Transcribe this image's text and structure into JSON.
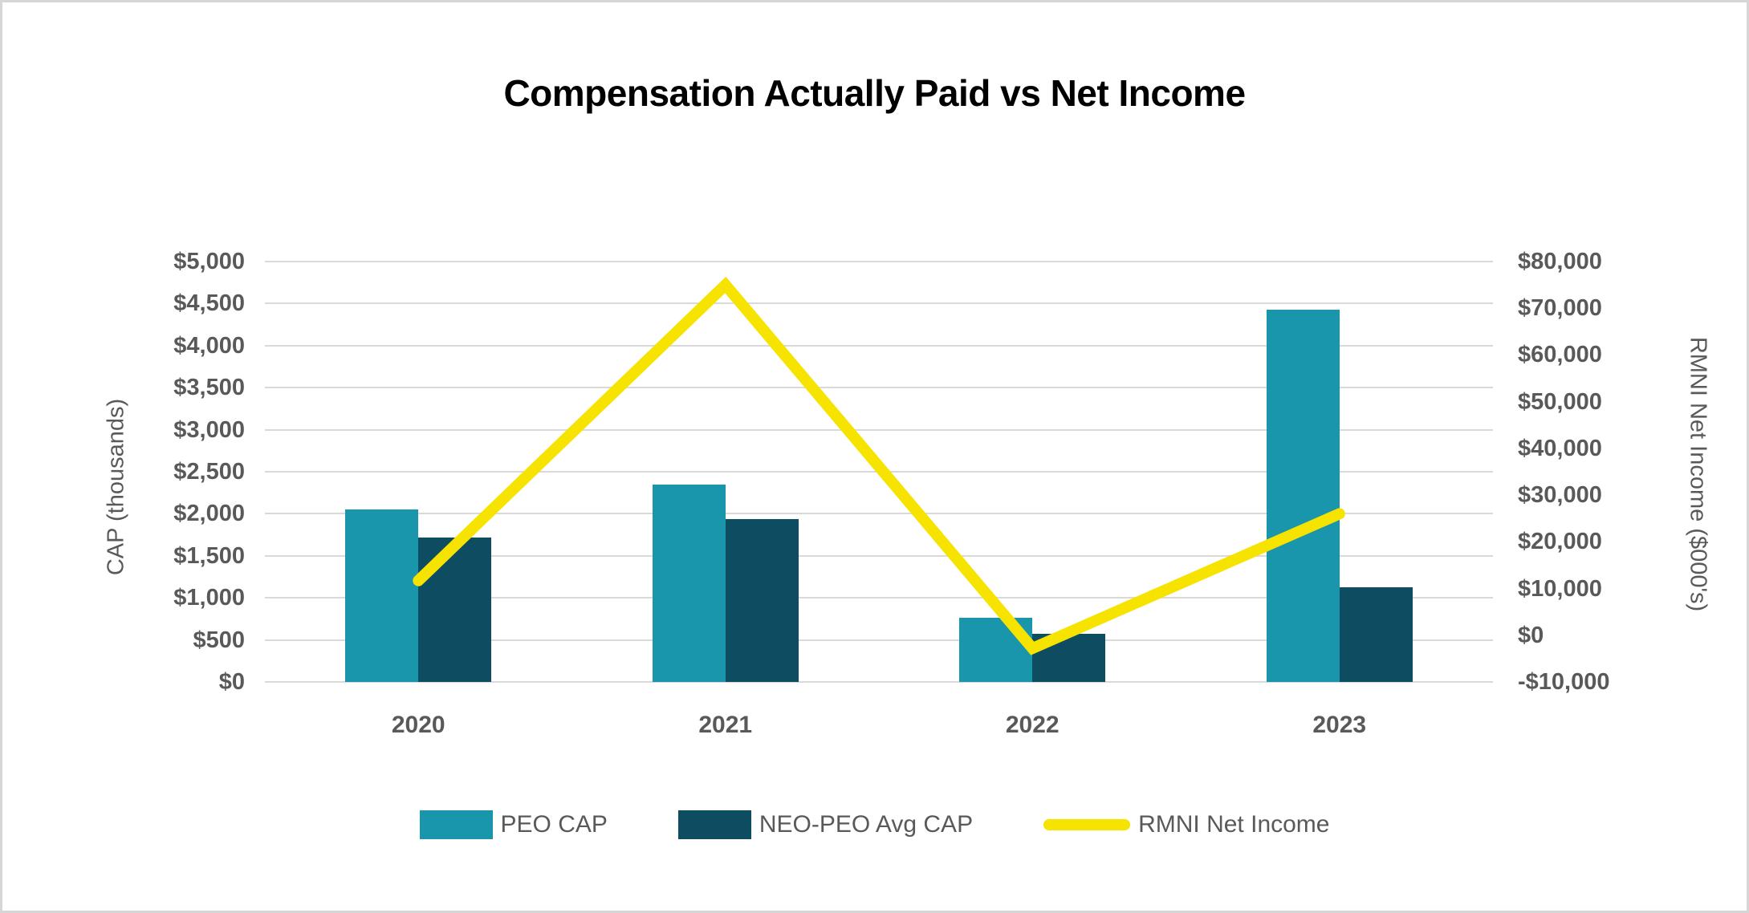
{
  "title": "Compensation Actually Paid vs Net Income",
  "colors": {
    "peo_cap": "#1995AC",
    "neo_peo_avg_cap": "#0E4D61",
    "rmni_net_income": "#F7E300",
    "gridline": "#D9D9D9",
    "axis_text": "#595959",
    "title_text": "#000000"
  },
  "chart_data": {
    "type": "combo-bar-line",
    "categories": [
      "2020",
      "2021",
      "2022",
      "2023"
    ],
    "series": [
      {
        "name": "PEO CAP",
        "type": "bar",
        "axis": "left",
        "color": "#1995AC",
        "values": [
          2050,
          2350,
          765,
          4430
        ]
      },
      {
        "name": "NEO-PEO Avg CAP",
        "type": "bar",
        "axis": "left",
        "color": "#0E4D61",
        "values": [
          1715,
          1940,
          575,
          1130
        ]
      },
      {
        "name": "RMNI Net Income",
        "type": "line",
        "axis": "right",
        "color": "#F7E300",
        "values": [
          11700,
          75000,
          -2800,
          26000
        ]
      }
    ],
    "left_axis": {
      "title": "CAP (thousands)",
      "min": 0,
      "max": 5000,
      "step": 500,
      "tick_labels": [
        "$5,000",
        "$4,500",
        "$4,000",
        "$3,500",
        "$3,000",
        "$2,500",
        "$2,000",
        "$1,500",
        "$1,000",
        "$500",
        "$0"
      ]
    },
    "right_axis": {
      "title": "RMNI Net Income ($000's)",
      "min": -10000,
      "max": 80000,
      "step": 10000,
      "tick_labels": [
        "$80,000",
        "$70,000",
        "$60,000",
        "$50,000",
        "$40,000",
        "$30,000",
        "$20,000",
        "$10,000",
        "$0",
        "-$10,000"
      ]
    },
    "grid": true,
    "legend_position": "bottom"
  },
  "legend": {
    "items": [
      {
        "label": "PEO CAP",
        "swatch": "rect",
        "color": "#1995AC"
      },
      {
        "label": "NEO-PEO Avg CAP",
        "swatch": "rect",
        "color": "#0E4D61"
      },
      {
        "label": "RMNI Net Income",
        "swatch": "line",
        "color": "#F7E300"
      }
    ]
  }
}
